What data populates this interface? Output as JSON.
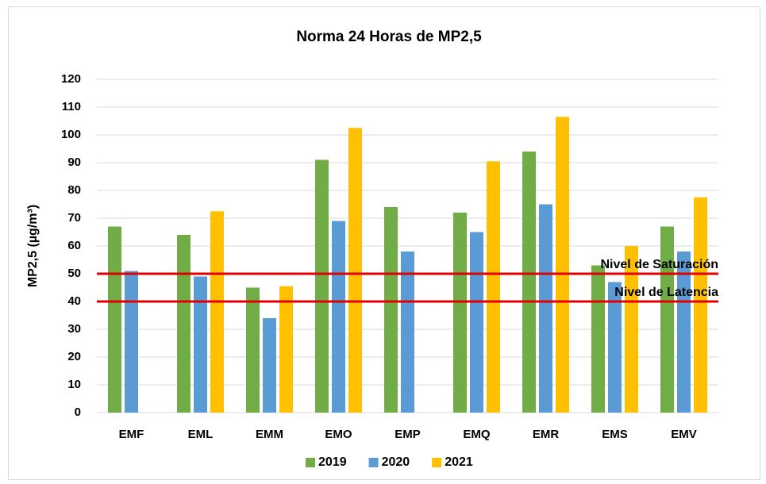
{
  "chart_data": {
    "type": "bar",
    "title": "Norma 24 Horas de MP2,5",
    "y_label": "MP2,5 (µg/m³)",
    "categories": [
      "EMF",
      "EML",
      "EMM",
      "EMO",
      "EMP",
      "EMQ",
      "EMR",
      "EMS",
      "EMV"
    ],
    "series": [
      {
        "name": "2019",
        "color": "#70ad47",
        "values": [
          67,
          64,
          45,
          91,
          74,
          72,
          94,
          53,
          67
        ]
      },
      {
        "name": "2020",
        "color": "#5b9bd5",
        "values": [
          51,
          49,
          34,
          69,
          58,
          65,
          75,
          47,
          58
        ]
      },
      {
        "name": "2021",
        "color": "#ffc000",
        "values": [
          null,
          72.5,
          45.5,
          102.5,
          null,
          90.5,
          106.5,
          60,
          77.5
        ]
      }
    ],
    "reference_lines": [
      {
        "value": 50,
        "label": "Nivel de Saturación",
        "color": "#e00000"
      },
      {
        "value": 40,
        "label": "Nivel de Latencia",
        "color": "#e00000"
      }
    ],
    "ylim": [
      0,
      120
    ],
    "yticks": [
      0,
      10,
      20,
      30,
      40,
      50,
      60,
      70,
      80,
      90,
      100,
      110,
      120
    ],
    "grid": true,
    "legend": "bottom"
  }
}
